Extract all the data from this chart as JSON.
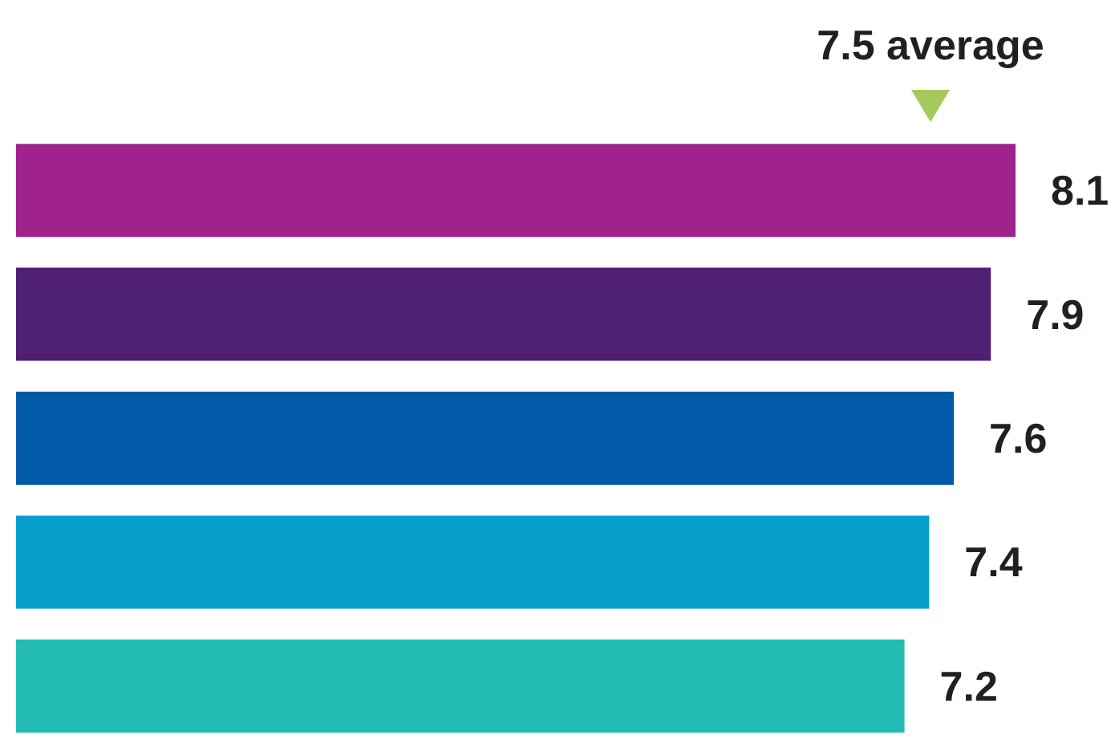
{
  "chart_data": {
    "type": "bar",
    "orientation": "horizontal",
    "categories": [
      null,
      null,
      null,
      null,
      null
    ],
    "values": [
      8.1,
      7.9,
      7.6,
      7.4,
      7.2
    ],
    "colors": [
      "#a0228c",
      "#4e1f73",
      "#005aa8",
      "#069fcc",
      "#22bcb5"
    ],
    "data_labels": true,
    "xlim": [
      0,
      8.1
    ],
    "tick_labels": false,
    "annotations": [
      "7.5 average"
    ]
  }
}
